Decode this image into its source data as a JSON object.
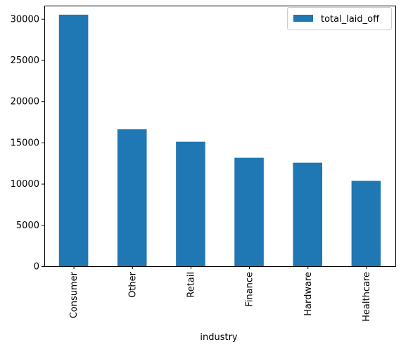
{
  "chart_data": {
    "type": "bar",
    "categories": [
      "Consumer",
      "Other",
      "Retail",
      "Finance",
      "Hardware",
      "Healthcare"
    ],
    "series": [
      {
        "name": "total_laid_off",
        "values": [
          30500,
          16600,
          15100,
          13150,
          12550,
          10350
        ],
        "color": "#1f77b4"
      }
    ],
    "xlabel": "industry",
    "ylabel": "",
    "ylim": [
      0,
      31600
    ],
    "yticks": [
      0,
      5000,
      10000,
      15000,
      20000,
      25000,
      30000
    ],
    "grid": false,
    "legend": {
      "position": "top-right",
      "entries": [
        "total_laid_off"
      ]
    }
  }
}
